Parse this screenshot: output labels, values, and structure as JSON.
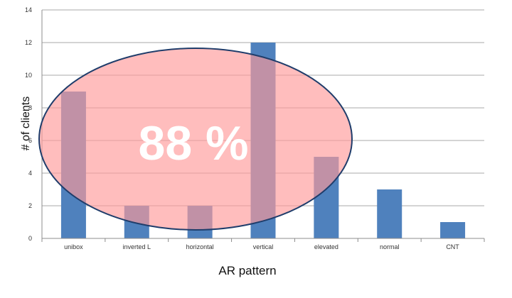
{
  "chart_data": {
    "type": "bar",
    "categories": [
      "unibox",
      "inverted L",
      "horizontal",
      "vertical",
      "elevated",
      "normal",
      "CNT"
    ],
    "values": [
      9,
      2,
      2,
      12,
      5,
      3,
      1
    ],
    "xlabel": "AR pattern",
    "ylabel": "# of clients",
    "ylim": [
      0,
      14
    ],
    "yticks": [
      0,
      2,
      4,
      6,
      8,
      10,
      12,
      14
    ],
    "grid": true,
    "legend": "none",
    "bar_color": "#4F81BD",
    "annotation": {
      "text": "88 %",
      "shape": "ellipse",
      "fill_color": "#FF9999",
      "border_color": "#1F3D6B"
    }
  }
}
